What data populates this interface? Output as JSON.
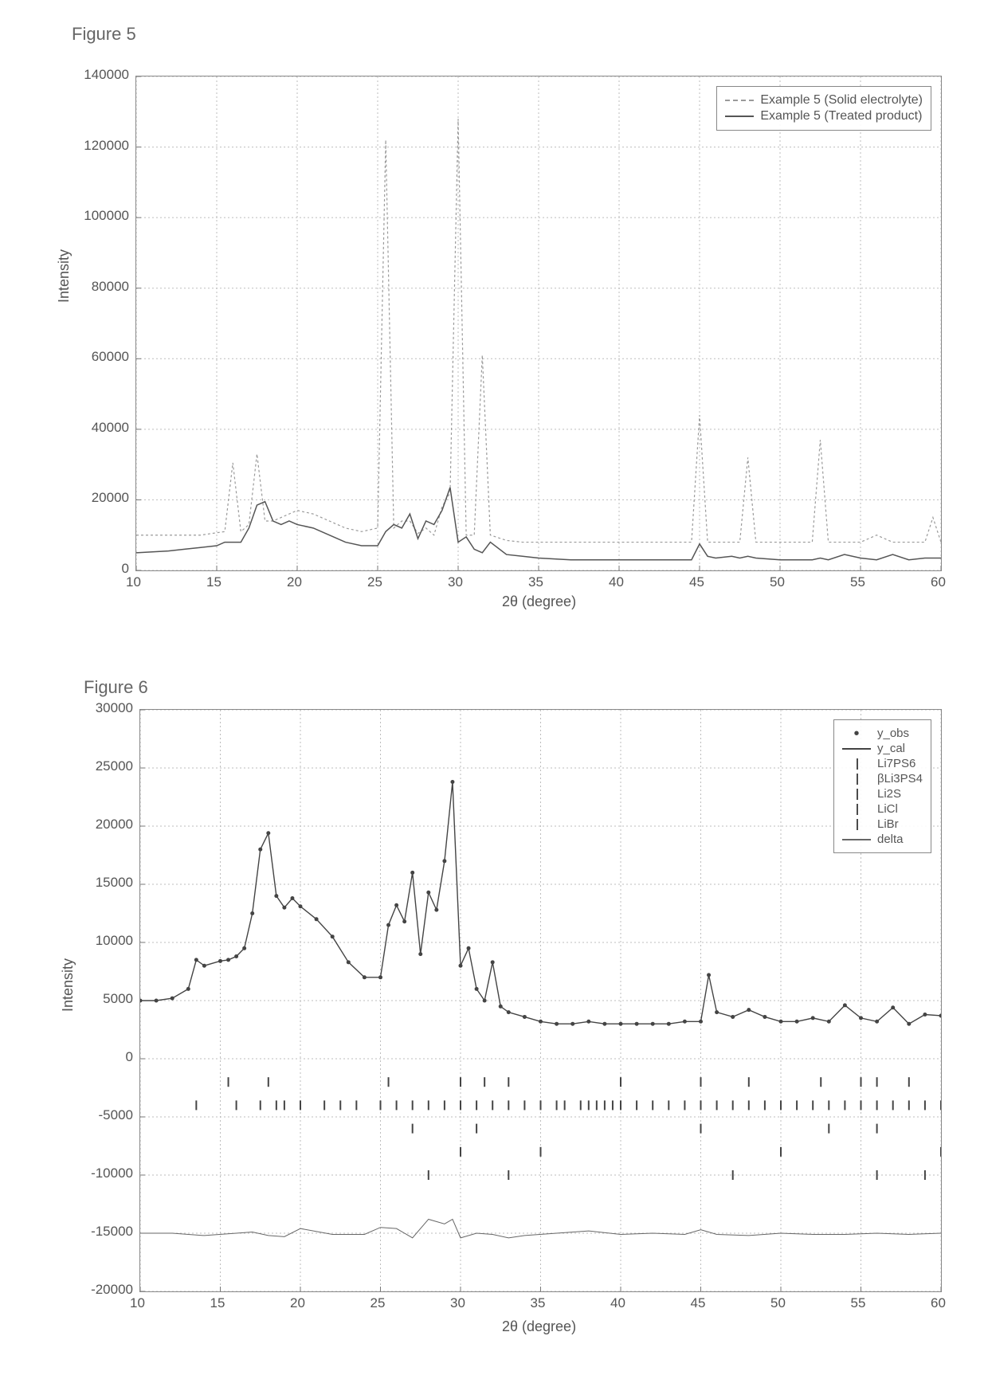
{
  "figure5": {
    "label": "Figure 5",
    "type": "line",
    "xlabel": "2θ (degree)",
    "ylabel": "Intensity",
    "xlim": [
      10,
      60
    ],
    "ylim": [
      0,
      140000
    ],
    "xticks": [
      10,
      15,
      20,
      25,
      30,
      35,
      40,
      45,
      50,
      55,
      60
    ],
    "yticks": [
      0,
      20000,
      40000,
      60000,
      80000,
      100000,
      120000,
      140000
    ],
    "background_color": "#ffffff",
    "grid_color": "#bdbdbd",
    "grid_dash": "2,3",
    "axis_color": "#777777",
    "label_fontsize": 18,
    "tick_fontsize": 17,
    "legend_border": "#888888",
    "series": [
      {
        "name": "Example 5 (Solid electrolyte)",
        "color": "#9a9a9a",
        "width": 1.2,
        "dash": "3,3",
        "x": [
          10,
          12,
          14,
          15.5,
          16,
          16.5,
          17,
          17.5,
          18,
          18.5,
          19,
          20,
          21,
          22,
          23,
          24,
          25,
          25.5,
          26,
          26.5,
          27,
          27.5,
          28,
          28.5,
          29,
          29.5,
          30,
          30.5,
          31,
          31.5,
          32,
          33,
          34,
          35,
          37,
          40,
          43,
          44.5,
          45,
          45.5,
          46,
          47.5,
          48,
          48.5,
          50,
          52,
          52.5,
          53,
          54,
          55,
          56,
          57,
          58,
          59,
          59.5,
          60
        ],
        "y": [
          10000,
          10000,
          10000,
          11000,
          30500,
          11000,
          13000,
          33000,
          14000,
          14000,
          15000,
          17000,
          16000,
          14000,
          12000,
          11000,
          12000,
          122000,
          12000,
          14000,
          14000,
          10500,
          12000,
          10000,
          18000,
          22000,
          128000,
          10000,
          10000,
          61000,
          10000,
          8500,
          8000,
          8000,
          8000,
          8000,
          8000,
          8000,
          44000,
          8000,
          8000,
          8000,
          32000,
          8000,
          8000,
          8000,
          37000,
          8000,
          8000,
          8000,
          10000,
          8000,
          8000,
          8000,
          15000,
          8000
        ]
      },
      {
        "name": "Example 5 (Treated product)",
        "color": "#555555",
        "width": 1.5,
        "dash": "",
        "x": [
          10,
          12,
          13,
          14,
          15,
          15.5,
          16,
          16.5,
          17,
          17.5,
          18,
          18.5,
          19,
          19.5,
          20,
          21,
          22,
          23,
          24,
          25,
          25.5,
          26,
          26.5,
          27,
          27.5,
          28,
          28.5,
          29,
          29.5,
          30,
          30.5,
          31,
          31.5,
          32,
          33,
          34,
          35,
          37,
          40,
          43,
          44.5,
          45,
          45.5,
          46,
          47,
          47.5,
          48,
          48.5,
          50,
          52,
          52.5,
          53,
          54,
          55,
          56,
          57,
          58,
          59,
          60
        ],
        "y": [
          5000,
          5500,
          6000,
          6500,
          7000,
          8000,
          8000,
          8000,
          12000,
          18500,
          19500,
          14000,
          13000,
          14000,
          13000,
          12000,
          10000,
          8000,
          7000,
          7000,
          11000,
          13000,
          12000,
          16000,
          9000,
          14000,
          13000,
          17000,
          23500,
          8000,
          9500,
          6000,
          5000,
          8000,
          4500,
          4000,
          3500,
          3000,
          3000,
          3000,
          3000,
          7500,
          4000,
          3500,
          4000,
          3500,
          4000,
          3500,
          3000,
          3000,
          3500,
          3000,
          4500,
          3500,
          3000,
          4500,
          3000,
          3500,
          3500
        ]
      }
    ]
  },
  "figure6": {
    "label": "Figure 6",
    "type": "line+markers",
    "xlabel": "2θ (degree)",
    "ylabel": "Intensity",
    "xlim": [
      10,
      60
    ],
    "ylim": [
      -20000,
      30000
    ],
    "xticks": [
      10,
      15,
      20,
      25,
      30,
      35,
      40,
      45,
      50,
      55,
      60
    ],
    "yticks": [
      -20000,
      -15000,
      -10000,
      -5000,
      0,
      5000,
      10000,
      15000,
      20000,
      25000,
      30000
    ],
    "background_color": "#ffffff",
    "grid_color": "#bdbdbd",
    "grid_dash": "2,3",
    "axis_color": "#777777",
    "label_fontsize": 18,
    "tick_fontsize": 17,
    "legend_border": "#888888",
    "tick_mark_color": "#444444",
    "phase_rows": {
      "Li7PS6": {
        "y": -2000,
        "x": [
          15.5,
          18,
          25.5,
          30,
          31.5,
          33,
          40,
          45,
          48,
          52.5,
          55,
          56,
          58
        ]
      },
      "bLi3PS4": {
        "y": -4000,
        "x": [
          13.5,
          16,
          17.5,
          18.5,
          19,
          20,
          21.5,
          22.5,
          23.5,
          25,
          26,
          27,
          28,
          29,
          30,
          31,
          32,
          33,
          34,
          35,
          36,
          36.5,
          37.5,
          38,
          38.5,
          39,
          39.5,
          40,
          41,
          42,
          43,
          44,
          45,
          46,
          47,
          48,
          49,
          50,
          51,
          52,
          53,
          54,
          55,
          56,
          57,
          58,
          59,
          60
        ]
      },
      "Li2S": {
        "y": -6000,
        "x": [
          27,
          31,
          45,
          53,
          56
        ]
      },
      "LiCl": {
        "y": -8000,
        "x": [
          30,
          35,
          50,
          60
        ]
      },
      "LiBr": {
        "y": -10000,
        "x": [
          28,
          33,
          47,
          56,
          59
        ]
      }
    },
    "series": {
      "y_obs": {
        "name": "y_obs",
        "color": "#444444",
        "marker": "dot",
        "size": 2.5,
        "x": [
          10,
          11,
          12,
          13,
          13.5,
          14,
          15,
          15.5,
          16,
          16.5,
          17,
          17.5,
          18,
          18.5,
          19,
          19.5,
          20,
          21,
          22,
          23,
          24,
          25,
          25.5,
          26,
          26.5,
          27,
          27.5,
          28,
          28.5,
          29,
          29.5,
          30,
          30.5,
          31,
          31.5,
          32,
          32.5,
          33,
          34,
          35,
          36,
          37,
          38,
          39,
          40,
          41,
          42,
          43,
          44,
          45,
          45.5,
          46,
          47,
          48,
          49,
          50,
          51,
          52,
          53,
          54,
          55,
          56,
          57,
          58,
          59,
          60
        ],
        "y": [
          5000,
          5000,
          5200,
          6000,
          8500,
          8000,
          8400,
          8500,
          8800,
          9500,
          12500,
          18000,
          19400,
          14000,
          13000,
          13800,
          13100,
          12000,
          10500,
          8300,
          7000,
          7000,
          11500,
          13200,
          11800,
          16000,
          9000,
          14300,
          12800,
          17000,
          23800,
          8000,
          9500,
          6000,
          5000,
          8300,
          4500,
          4000,
          3600,
          3200,
          3000,
          3000,
          3200,
          3000,
          3000,
          3000,
          3000,
          3000,
          3200,
          3200,
          7200,
          4000,
          3600,
          4200,
          3600,
          3200,
          3200,
          3500,
          3200,
          4600,
          3500,
          3200,
          4400,
          3000,
          3800,
          3700
        ]
      },
      "y_cal": {
        "name": "y_cal",
        "color": "#444444",
        "width": 1.4,
        "x": [
          10,
          11,
          12,
          13,
          13.5,
          14,
          15,
          15.5,
          16,
          16.5,
          17,
          17.5,
          18,
          18.5,
          19,
          19.5,
          20,
          21,
          22,
          23,
          24,
          25,
          25.5,
          26,
          26.5,
          27,
          27.5,
          28,
          28.5,
          29,
          29.5,
          30,
          30.5,
          31,
          31.5,
          32,
          32.5,
          33,
          34,
          35,
          36,
          37,
          38,
          39,
          40,
          41,
          42,
          43,
          44,
          45,
          45.5,
          46,
          47,
          48,
          49,
          50,
          51,
          52,
          53,
          54,
          55,
          56,
          57,
          58,
          59,
          60
        ],
        "y": [
          5000,
          5000,
          5200,
          6000,
          8500,
          8000,
          8400,
          8500,
          8800,
          9500,
          12500,
          18000,
          19400,
          14000,
          13000,
          13800,
          13100,
          12000,
          10500,
          8300,
          7000,
          7000,
          11500,
          13200,
          11800,
          16000,
          9000,
          14300,
          12800,
          17000,
          23800,
          8000,
          9500,
          6000,
          5000,
          8300,
          4500,
          4000,
          3600,
          3200,
          3000,
          3000,
          3200,
          3000,
          3000,
          3000,
          3000,
          3000,
          3200,
          3200,
          7200,
          4000,
          3600,
          4200,
          3600,
          3200,
          3200,
          3500,
          3200,
          4600,
          3500,
          3200,
          4400,
          3000,
          3800,
          3700
        ]
      },
      "delta": {
        "name": "delta",
        "color": "#666666",
        "width": 1.0,
        "x": [
          10,
          12,
          14,
          16,
          17,
          18,
          19,
          20,
          22,
          24,
          25,
          26,
          27,
          28,
          29,
          29.5,
          30,
          31,
          32,
          33,
          34,
          36,
          38,
          40,
          42,
          44,
          45,
          46,
          48,
          50,
          52,
          54,
          56,
          58,
          60
        ],
        "y": [
          -15000,
          -15000,
          -15200,
          -15000,
          -14900,
          -15200,
          -15300,
          -14600,
          -15100,
          -15100,
          -14500,
          -14600,
          -15400,
          -13800,
          -14200,
          -13800,
          -15400,
          -15000,
          -15100,
          -15400,
          -15200,
          -15000,
          -14800,
          -15100,
          -15000,
          -15100,
          -14700,
          -15100,
          -15200,
          -15000,
          -15100,
          -15100,
          -15000,
          -15100,
          -15000
        ]
      }
    },
    "legend_items": [
      "y_obs",
      "y_cal",
      "Li7PS6",
      "βLi3PS4",
      "Li2S",
      "LiCl",
      "LiBr",
      "delta"
    ]
  }
}
